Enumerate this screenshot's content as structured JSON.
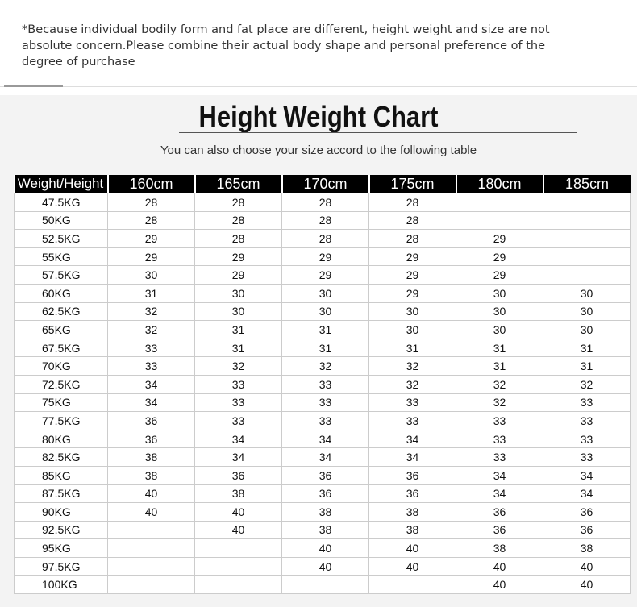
{
  "note": "*Because individual bodily form and fat place are different, height weight and size are not absolute concern.Please combine their actual body shape and personal preference of the degree of purchase",
  "title": "Height Weight Chart",
  "subtitle": "You can also choose your size accord to the following table",
  "table": {
    "header": [
      "Weight/Height",
      "160cm",
      "165cm",
      "170cm",
      "175cm",
      "180cm",
      "185cm"
    ],
    "rows": [
      {
        "weight": "47.5KG",
        "sizes": [
          28,
          28,
          28,
          28,
          null,
          null
        ]
      },
      {
        "weight": "50KG",
        "sizes": [
          28,
          28,
          28,
          28,
          null,
          null
        ]
      },
      {
        "weight": "52.5KG",
        "sizes": [
          29,
          28,
          28,
          28,
          29,
          null
        ]
      },
      {
        "weight": "55KG",
        "sizes": [
          29,
          29,
          29,
          29,
          29,
          null
        ]
      },
      {
        "weight": "57.5KG",
        "sizes": [
          30,
          29,
          29,
          29,
          29,
          null
        ]
      },
      {
        "weight": "60KG",
        "sizes": [
          31,
          30,
          30,
          29,
          30,
          30
        ]
      },
      {
        "weight": "62.5KG",
        "sizes": [
          32,
          30,
          30,
          30,
          30,
          30
        ]
      },
      {
        "weight": "65KG",
        "sizes": [
          32,
          31,
          31,
          30,
          30,
          30
        ]
      },
      {
        "weight": "67.5KG",
        "sizes": [
          33,
          31,
          31,
          31,
          31,
          31
        ]
      },
      {
        "weight": "70KG",
        "sizes": [
          33,
          32,
          32,
          32,
          31,
          31
        ]
      },
      {
        "weight": "72.5KG",
        "sizes": [
          34,
          33,
          33,
          32,
          32,
          32
        ]
      },
      {
        "weight": "75KG",
        "sizes": [
          34,
          33,
          33,
          33,
          32,
          33
        ]
      },
      {
        "weight": "77.5KG",
        "sizes": [
          36,
          33,
          33,
          33,
          33,
          33
        ]
      },
      {
        "weight": "80KG",
        "sizes": [
          36,
          34,
          34,
          34,
          33,
          33
        ]
      },
      {
        "weight": "82.5KG",
        "sizes": [
          38,
          34,
          34,
          34,
          33,
          33
        ]
      },
      {
        "weight": "85KG",
        "sizes": [
          38,
          36,
          36,
          36,
          34,
          34
        ]
      },
      {
        "weight": "87.5KG",
        "sizes": [
          40,
          38,
          36,
          36,
          34,
          34
        ]
      },
      {
        "weight": "90KG",
        "sizes": [
          40,
          40,
          38,
          38,
          36,
          36
        ]
      },
      {
        "weight": "92.5KG",
        "sizes": [
          null,
          40,
          38,
          38,
          36,
          36
        ]
      },
      {
        "weight": "95KG",
        "sizes": [
          null,
          null,
          40,
          40,
          38,
          38
        ]
      },
      {
        "weight": "97.5KG",
        "sizes": [
          null,
          null,
          40,
          40,
          40,
          40
        ]
      },
      {
        "weight": "100KG",
        "sizes": [
          null,
          null,
          null,
          null,
          40,
          40
        ]
      }
    ]
  }
}
